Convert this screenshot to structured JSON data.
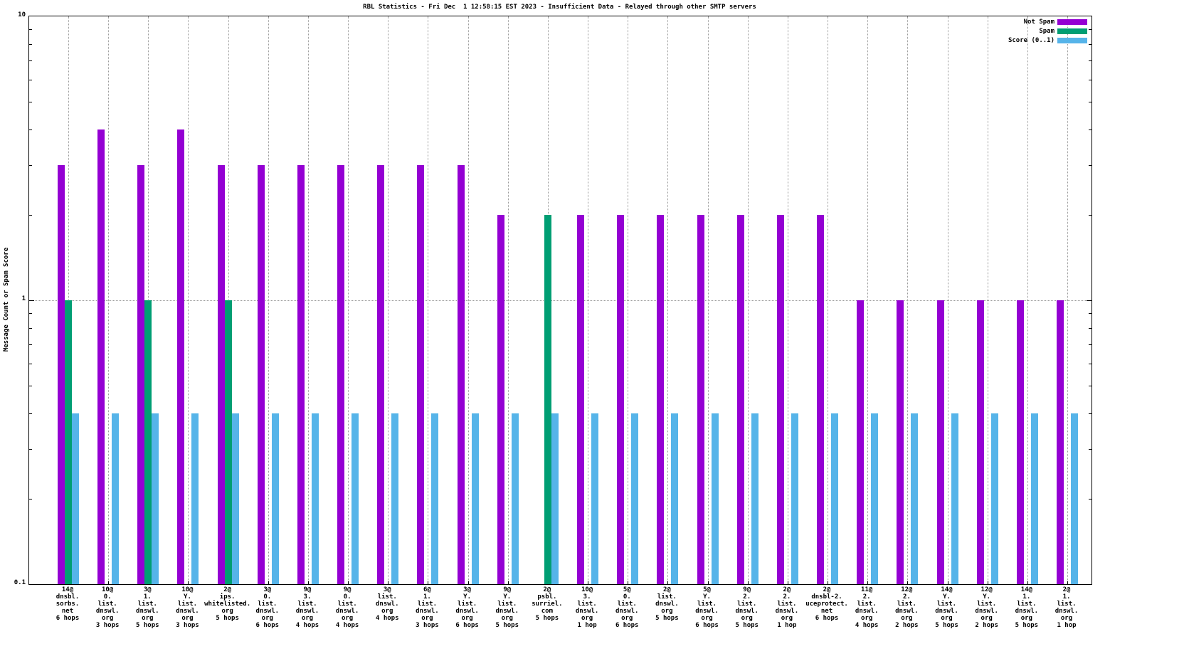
{
  "title": "RBL Statistics - Fri Dec  1 12:58:15 EST 2023 - Insufficient Data - Relayed through other SMTP servers",
  "ylabel": "Message Count or Spam Score",
  "legend": [
    {
      "label": "Not Spam",
      "color": "#9400d3"
    },
    {
      "label": "Spam",
      "color": "#009e73"
    },
    {
      "label": "Score (0..1)",
      "color": "#56b4e9"
    }
  ],
  "chart_data": {
    "type": "bar",
    "scale": "log",
    "ylim": [
      0.1,
      10
    ],
    "grid": true,
    "legend_position": "top-right",
    "yticks": [
      {
        "label": "10",
        "value": 10
      },
      {
        "label": "1",
        "value": 1
      },
      {
        "label": "0.1",
        "value": 0.1
      }
    ],
    "categories": [
      [
        "14@",
        "dnsbl.",
        "sorbs.",
        "net",
        "6 hops"
      ],
      [
        "10@",
        "0.",
        "list.",
        "dnswl.",
        "org",
        "3 hops"
      ],
      [
        "3@",
        "1.",
        "list.",
        "dnswl.",
        "org",
        "5 hops"
      ],
      [
        "10@",
        "Y.",
        "list.",
        "dnswl.",
        "org",
        "3 hops"
      ],
      [
        "2@",
        "ips.",
        "whitelisted.",
        "org",
        "5 hops"
      ],
      [
        "3@",
        "0.",
        "list.",
        "dnswl.",
        "org",
        "6 hops"
      ],
      [
        "9@",
        "3.",
        "list.",
        "dnswl.",
        "org",
        "4 hops"
      ],
      [
        "9@",
        "0.",
        "list.",
        "dnswl.",
        "org",
        "4 hops"
      ],
      [
        "3@",
        "list.",
        "dnswl.",
        "org",
        "4 hops"
      ],
      [
        "6@",
        "1.",
        "list.",
        "dnswl.",
        "org",
        "3 hops"
      ],
      [
        "3@",
        "Y.",
        "list.",
        "dnswl.",
        "org",
        "6 hops"
      ],
      [
        "9@",
        "Y.",
        "list.",
        "dnswl.",
        "org",
        "5 hops"
      ],
      [
        "2@",
        "psbl.",
        "surriel.",
        "com",
        "5 hops"
      ],
      [
        "10@",
        "3.",
        "list.",
        "dnswl.",
        "org",
        "1 hop"
      ],
      [
        "5@",
        "0.",
        "list.",
        "dnswl.",
        "org",
        "6 hops"
      ],
      [
        "2@",
        "list.",
        "dnswl.",
        "org",
        "5 hops"
      ],
      [
        "5@",
        "Y.",
        "list.",
        "dnswl.",
        "org",
        "6 hops"
      ],
      [
        "9@",
        "2.",
        "list.",
        "dnswl.",
        "org",
        "5 hops"
      ],
      [
        "2@",
        "2.",
        "list.",
        "dnswl.",
        "org",
        "1 hop"
      ],
      [
        "2@",
        "dnsbl-2.",
        "uceprotect.",
        "net",
        "6 hops"
      ],
      [
        "11@",
        "2.",
        "list.",
        "dnswl.",
        "org",
        "4 hops"
      ],
      [
        "12@",
        "2.",
        "list.",
        "dnswl.",
        "org",
        "2 hops"
      ],
      [
        "14@",
        "Y.",
        "list.",
        "dnswl.",
        "org",
        "5 hops"
      ],
      [
        "12@",
        "Y.",
        "list.",
        "dnswl.",
        "org",
        "2 hops"
      ],
      [
        "14@",
        "1.",
        "list.",
        "dnswl.",
        "org",
        "5 hops"
      ],
      [
        "2@",
        "1.",
        "list.",
        "dnswl.",
        "org",
        "1 hop"
      ]
    ],
    "series": [
      {
        "name": "Not Spam",
        "color": "#9400d3",
        "values": [
          3,
          4,
          3,
          4,
          3,
          3,
          3,
          3,
          3,
          3,
          3,
          2,
          null,
          2,
          2,
          2,
          2,
          2,
          2,
          2,
          1,
          1,
          1,
          1,
          1,
          1
        ]
      },
      {
        "name": "Spam",
        "color": "#009e73",
        "values": [
          1,
          null,
          1,
          null,
          1,
          null,
          null,
          null,
          null,
          null,
          null,
          null,
          2,
          null,
          null,
          null,
          null,
          null,
          null,
          null,
          null,
          null,
          null,
          null,
          null,
          null
        ]
      },
      {
        "name": "Score (0..1)",
        "color": "#56b4e9",
        "values": [
          0.4,
          0.4,
          0.4,
          0.4,
          0.4,
          0.4,
          0.4,
          0.4,
          0.4,
          0.4,
          0.4,
          0.4,
          0.4,
          0.4,
          0.4,
          0.4,
          0.4,
          0.4,
          0.4,
          0.4,
          0.4,
          0.4,
          0.4,
          0.4,
          0.4,
          0.4
        ]
      }
    ]
  }
}
